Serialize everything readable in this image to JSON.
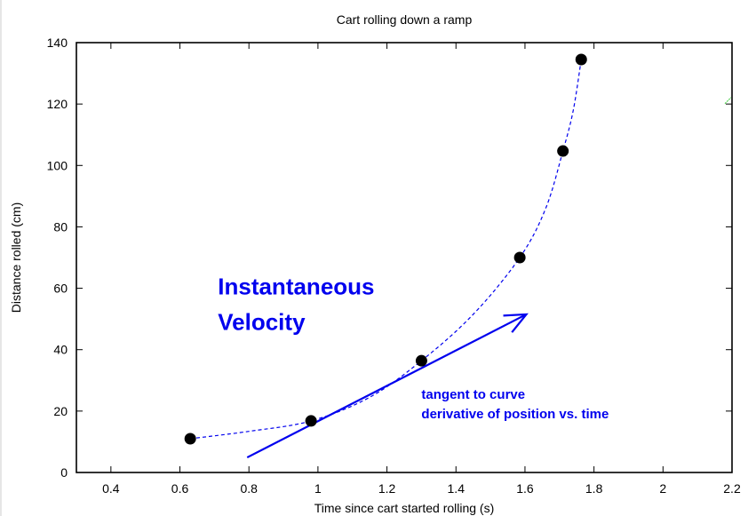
{
  "chart_data": {
    "type": "scatter",
    "title": "Cart rolling down a ramp",
    "xlabel": "Time since cart started rolling (s)",
    "ylabel": "Distance rolled (cm)",
    "xlim": [
      0.3,
      2.2
    ],
    "ylim": [
      0,
      140
    ],
    "xticks": [
      0.4,
      0.6,
      0.8,
      1,
      1.2,
      1.4,
      1.6,
      1.8,
      2,
      2.2
    ],
    "xtick_labels": [
      "0.4",
      "0.6",
      "0.8",
      "1",
      "1.2",
      "1.4",
      "1.6",
      "1.8",
      "2",
      "2.2"
    ],
    "yticks": [
      0,
      20,
      40,
      60,
      80,
      100,
      120,
      140
    ],
    "ytick_labels": [
      "0",
      "20",
      "40",
      "60",
      "80",
      "100",
      "120",
      "140"
    ],
    "grid": false,
    "series": [
      {
        "name": "measurements",
        "marker": "filled-circle",
        "color": "#000000",
        "x": [
          0.63,
          0.98,
          1.3,
          1.585,
          1.71,
          1.763
        ],
        "y": [
          11,
          16.8,
          36.4,
          70,
          104.7,
          134.5
        ]
      },
      {
        "name": "fit-curve",
        "style": "dashed",
        "color": "#0000ee",
        "x": [
          0.63,
          0.8,
          0.98,
          1.15,
          1.3,
          1.45,
          1.585,
          1.66,
          1.71,
          1.74,
          1.763
        ],
        "y": [
          11,
          13.4,
          16.8,
          24.5,
          36.4,
          51.5,
          70,
          86,
          104.7,
          118,
          134.5
        ]
      }
    ],
    "annotations": [
      {
        "type": "arrow",
        "name": "tangent-arrow",
        "color": "#0000ee",
        "from": [
          0.795,
          4.9
        ],
        "to": [
          1.604,
          51.5
        ]
      },
      {
        "type": "text",
        "name": "instantaneous-label",
        "lines": [
          "Instantaneous",
          "Velocity"
        ],
        "color": "#0000ee",
        "at": [
          0.71,
          58
        ]
      },
      {
        "type": "text",
        "name": "tangent-label",
        "lines": [
          "tangent to curve",
          "derivative of position vs. time"
        ],
        "color": "#0000ee",
        "at": [
          1.3,
          24
        ]
      }
    ],
    "stray_mark_color": "#33cc33"
  }
}
